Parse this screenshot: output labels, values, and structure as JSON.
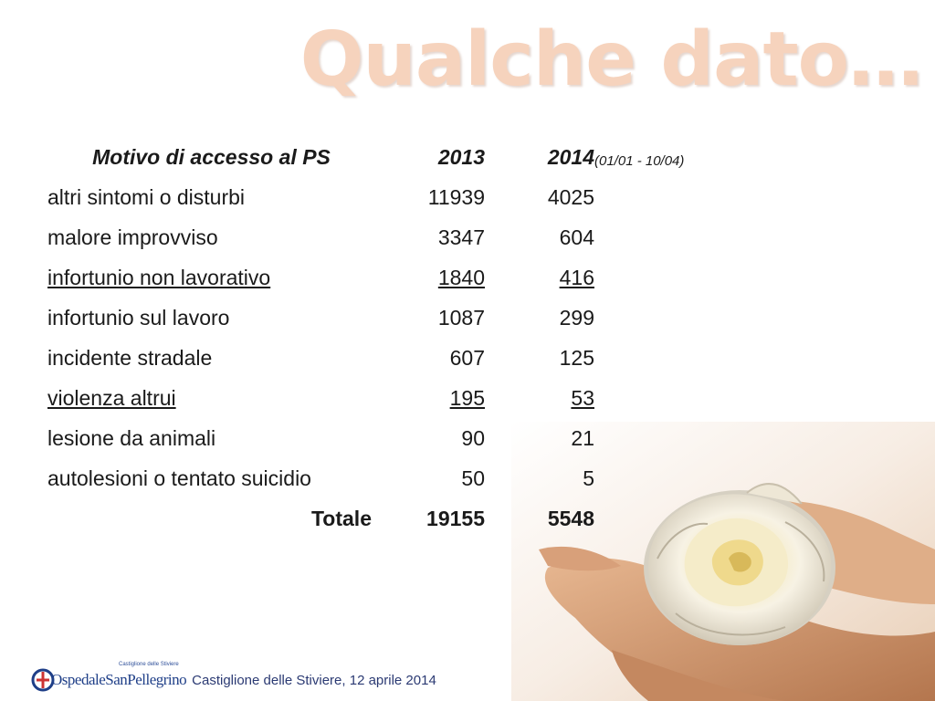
{
  "slide": {
    "title": "Qualche dato…"
  },
  "table": {
    "headers": {
      "label": "Motivo di accesso al PS",
      "y2013": "2013",
      "y2014": "2014"
    },
    "period_note": "(01/01 - 10/04)",
    "rows": [
      {
        "label": "altri sintomi o disturbi",
        "y2013": "11939",
        "y2014": "4025"
      },
      {
        "label": "malore improvviso",
        "y2013": "3347",
        "y2014": "604"
      },
      {
        "label": "infortunio non lavorativo",
        "y2013": "1840",
        "y2014": "416"
      },
      {
        "label": "infortunio sul lavoro",
        "y2013": "1087",
        "y2014": "299"
      },
      {
        "label": "incidente stradale",
        "y2013": "607",
        "y2014": "125"
      },
      {
        "label": "violenza altrui",
        "y2013": "195",
        "y2014": "53"
      },
      {
        "label": "lesione da animali",
        "y2013": "90",
        "y2014": "21"
      },
      {
        "label": "autolesioni o tentato suicidio",
        "y2013": "50",
        "y2014": "5"
      }
    ],
    "total": {
      "label": "Totale",
      "y2013": "19155",
      "y2014": "5548"
    }
  },
  "footer": {
    "logo_text": "OspedaleSanPellegrino",
    "logo_subtext": "Castiglione delle Stiviere",
    "caption": "Castiglione delle Stiviere, 12 aprile 2014",
    "logo_icon": "hospital-logo-icon"
  },
  "colors": {
    "title": "#f6d3bd",
    "text": "#1a1a1a",
    "footer": "#2b3a73",
    "logo": "#1f3f88"
  }
}
